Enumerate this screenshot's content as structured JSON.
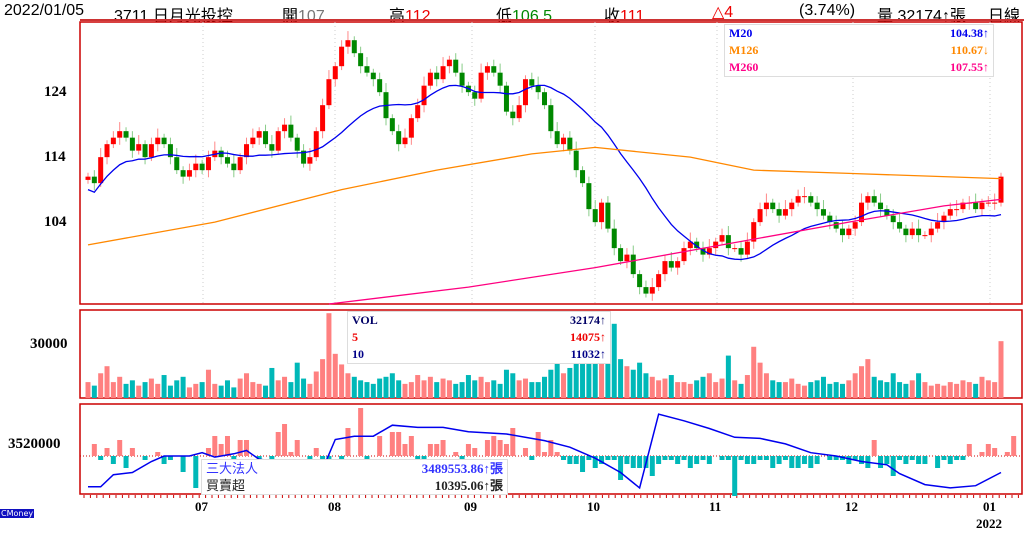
{
  "header": {
    "date": "2022/01/05",
    "stock": "3711 日月光投控",
    "open_label": "開",
    "open": "107",
    "high_label": "高",
    "high": "112",
    "low_label": "低",
    "low": "106.5",
    "close_label": "收",
    "close": "111",
    "change": "△4",
    "change_pct": "(3.74%)",
    "volume": "量 32174↑張",
    "period": "日線"
  },
  "ma_legend": [
    {
      "name": "M20",
      "value": "104.38↑",
      "color": "#0000ee"
    },
    {
      "name": "M126",
      "value": "110.67↓",
      "color": "#ff8800"
    },
    {
      "name": "M260",
      "value": "107.55↑",
      "color": "#ff0080"
    }
  ],
  "vol_legend": [
    {
      "name": "VOL",
      "value": "32174↑",
      "color": "#000060"
    },
    {
      "name": "5",
      "value": "14075↑",
      "color": "#ee0000"
    },
    {
      "name": "10",
      "value": "11032↑",
      "color": "#000080"
    }
  ],
  "inst_legend": [
    {
      "name": "三大法人",
      "value": "3489553.86↑張",
      "color": "#3333ff"
    },
    {
      "name": "買賣超",
      "value": "10395.06↑張",
      "color": "#222222"
    }
  ],
  "axis": {
    "price_ticks": [
      "124",
      "114",
      "104"
    ],
    "vol_tick": "30000",
    "inst_tick": "3520000",
    "months": [
      "07",
      "08",
      "09",
      "10",
      "11",
      "12",
      "01"
    ],
    "year": "2022",
    "logo": "CMoney"
  },
  "chart_data": {
    "type": "candlestick",
    "price_range": [
      91.4,
      134.8
    ],
    "closes": [
      111,
      110,
      114,
      116,
      117,
      118,
      117,
      115,
      116,
      114,
      116,
      117,
      116,
      114,
      112,
      111,
      112,
      113,
      112,
      114,
      115,
      114,
      113,
      112,
      114,
      116,
      117,
      118,
      116,
      115,
      118,
      119,
      117,
      115,
      113,
      114,
      118,
      122,
      126,
      128,
      131,
      132,
      130,
      128,
      127,
      126,
      124,
      120,
      118,
      116,
      117,
      120,
      122,
      125,
      127,
      126,
      128,
      129,
      127,
      125,
      124,
      123,
      127,
      128,
      127,
      125,
      121,
      120,
      122,
      126,
      125,
      124,
      122,
      118,
      116,
      117,
      115,
      112,
      110,
      106,
      104,
      107,
      103,
      100,
      98,
      99,
      96,
      94,
      93,
      94,
      96,
      98,
      97,
      98,
      100,
      101,
      100,
      99,
      100,
      101,
      102,
      100,
      100,
      99,
      101,
      104,
      106,
      107,
      106,
      105,
      106,
      107,
      108,
      108,
      107,
      106,
      105,
      104,
      103,
      102,
      103,
      104,
      107,
      108,
      107,
      106,
      105,
      104,
      103,
      102,
      103,
      102,
      102,
      103,
      104,
      105,
      106,
      106,
      107,
      107,
      106,
      107,
      107,
      107,
      111
    ],
    "volume": [
      9000,
      7000,
      14000,
      18000,
      9000,
      12000,
      8000,
      10000,
      7000,
      9000,
      11000,
      8000,
      13000,
      7000,
      10000,
      12000,
      6000,
      8000,
      9000,
      16000,
      8000,
      7000,
      10000,
      6000,
      11000,
      14000,
      9000,
      8000,
      7000,
      17000,
      10000,
      12000,
      9000,
      20000,
      11000,
      8000,
      15000,
      22000,
      48000,
      25000,
      19000,
      14000,
      12000,
      10000,
      9000,
      8000,
      11000,
      12000,
      14000,
      10000,
      8000,
      9000,
      13000,
      10000,
      12000,
      9000,
      11000,
      10000,
      8000,
      9000,
      13000,
      10000,
      12000,
      9000,
      10000,
      8000,
      16000,
      14000,
      10000,
      11000,
      9000,
      9000,
      12000,
      16000,
      20000,
      14000,
      17000,
      22000,
      28000,
      30000,
      24000,
      33000,
      36000,
      42000,
      22000,
      18000,
      16000,
      20000,
      14000,
      12000,
      10000,
      11000,
      13000,
      9000,
      9000,
      8000,
      10000,
      12000,
      14000,
      9000,
      11000,
      24000,
      10000,
      8000,
      13000,
      29000,
      20000,
      14000,
      10000,
      9000,
      9000,
      11000,
      8000,
      7000,
      9000,
      10000,
      12000,
      8000,
      9000,
      8000,
      10000,
      14000,
      18000,
      22000,
      12000,
      10000,
      9000,
      14000,
      9000,
      8000,
      10000,
      14000,
      9000,
      7000,
      8000,
      7000,
      9000,
      8000,
      10000,
      9000,
      8000,
      12000,
      10000,
      9000,
      32174
    ],
    "inst_net": [
      0,
      3,
      -1,
      2,
      -2,
      4,
      -3,
      2,
      0,
      -1,
      0,
      1,
      -2,
      -1,
      0,
      -4,
      0,
      -8,
      0,
      2,
      5,
      3,
      5,
      -1,
      4,
      4,
      0,
      -1,
      0,
      -1,
      6,
      8,
      1,
      4,
      0,
      -5,
      2,
      -2,
      -1,
      0,
      -1,
      7,
      0,
      12,
      -2,
      0,
      5,
      0,
      6,
      6,
      3,
      5,
      -1,
      -2,
      3,
      3,
      4,
      0,
      1,
      -2,
      3,
      2,
      0,
      4,
      5,
      4,
      3,
      7,
      0,
      2,
      -1,
      6,
      1,
      4,
      1,
      -1,
      -2,
      -2,
      -4,
      -1,
      -3,
      -2,
      -1,
      -1,
      -6,
      -2,
      -3,
      -3,
      -3,
      -5,
      -2,
      -1,
      -1,
      -2,
      -1,
      -3,
      -2,
      -1,
      -2,
      0,
      -1,
      -1,
      -10,
      -1,
      -2,
      -2,
      -1,
      -1,
      -3,
      -2,
      -1,
      -3,
      -3,
      -2,
      -3,
      -2,
      0,
      -1,
      -1,
      -1,
      -2,
      -1,
      -2,
      -3,
      4,
      -3,
      -2,
      -5,
      -1,
      -2,
      -1,
      -2,
      -2,
      0,
      -3,
      -1,
      -2,
      -1,
      -1,
      3,
      0,
      1,
      3,
      2,
      0,
      1,
      5
    ],
    "inst_line": [
      [
        0,
        -2.8
      ],
      [
        2,
        -2.8
      ],
      [
        4,
        -1.7
      ],
      [
        7,
        -1.5
      ],
      [
        10,
        -0.5
      ],
      [
        12,
        0
      ],
      [
        16,
        0
      ],
      [
        18,
        0.3
      ],
      [
        20,
        -0.1
      ],
      [
        23,
        0.2
      ],
      [
        25,
        0.5
      ],
      [
        27,
        -0.3
      ],
      [
        30,
        -0.5
      ],
      [
        34,
        -0.8
      ],
      [
        37,
        -1.2
      ],
      [
        39,
        1.5
      ],
      [
        42,
        1.8
      ],
      [
        45,
        1.8
      ],
      [
        48,
        2.8
      ],
      [
        52,
        2.6
      ],
      [
        56,
        2.6
      ],
      [
        60,
        2.2
      ],
      [
        66,
        2.0
      ],
      [
        72,
        1.4
      ],
      [
        76,
        0.8
      ],
      [
        80,
        -0.2
      ],
      [
        84,
        -1.5
      ],
      [
        87,
        -2.9
      ],
      [
        90,
        3.8
      ],
      [
        94,
        3.2
      ],
      [
        98,
        2.5
      ],
      [
        102,
        1.7
      ],
      [
        106,
        1.6
      ],
      [
        110,
        1.1
      ],
      [
        114,
        0.3
      ],
      [
        118,
        0.0
      ],
      [
        122,
        -0.5
      ],
      [
        126,
        -0.8
      ],
      [
        128,
        -1.6
      ],
      [
        132,
        -2.6
      ],
      [
        136,
        -2.9
      ],
      [
        140,
        -2.7
      ],
      [
        144,
        -1.5
      ]
    ],
    "m126": [
      [
        0,
        100.5
      ],
      [
        20,
        104
      ],
      [
        40,
        109
      ],
      [
        55,
        112
      ],
      [
        70,
        114.5
      ],
      [
        80,
        115.5
      ],
      [
        95,
        114
      ],
      [
        105,
        112
      ],
      [
        120,
        111.5
      ],
      [
        144,
        110.7
      ]
    ],
    "m260": [
      [
        38,
        91.4
      ],
      [
        60,
        94
      ],
      [
        80,
        97
      ],
      [
        100,
        100.5
      ],
      [
        120,
        104
      ],
      [
        135,
        106.5
      ],
      [
        144,
        107.5
      ]
    ]
  }
}
